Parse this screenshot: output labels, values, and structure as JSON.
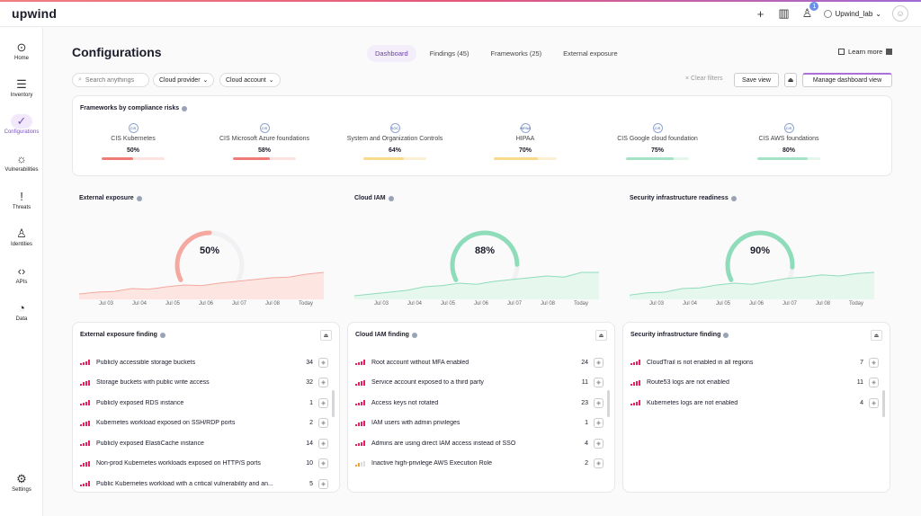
{
  "topbar": {
    "logo": "upwind",
    "notification_count": "1",
    "account_name": "Upwind_lab",
    "icons": [
      "plus-icon",
      "columns-icon",
      "bell-icon",
      "globe-icon",
      "user-icon"
    ]
  },
  "sidebar": {
    "items": [
      {
        "label": "Home",
        "icon": "home-icon"
      },
      {
        "label": "Inventory",
        "icon": "list-icon"
      },
      {
        "label": "Configurations",
        "icon": "check-icon"
      },
      {
        "label": "Vulnerabilities",
        "icon": "bug-icon"
      },
      {
        "label": "Threats",
        "icon": "exclamation-icon"
      },
      {
        "label": "Identities",
        "icon": "person-icon"
      },
      {
        "label": "APIs",
        "icon": "code-icon"
      },
      {
        "label": "Data",
        "icon": "pie-icon"
      },
      {
        "label": "Settings",
        "icon": "sliders-icon"
      }
    ]
  },
  "page": {
    "title": "Configurations",
    "tabs": [
      "Dashboard",
      "Findings (45)",
      "Frameworks (25)",
      "External exposure"
    ],
    "learn_more": "Learn more"
  },
  "filters": {
    "search_placeholder": "Search anythings",
    "cloud_provider": "Cloud provider",
    "cloud_account": "Cloud account",
    "clear_filters": "Clear filters",
    "save_view": "Save view",
    "manage_dashboard": "Manage dashboard view"
  },
  "frameworks": {
    "title": "Frameworks by compliance risks",
    "items": [
      {
        "logo": "CIS",
        "name": "CIS Kubernetes",
        "pct": "50%",
        "value": 0.5,
        "color": "#ef7d75",
        "track": "#fde3df"
      },
      {
        "logo": "CIS",
        "name": "CIS Microsoft Azure foundations",
        "pct": "58%",
        "value": 0.58,
        "color": "#ef7d75",
        "track": "#fde3df"
      },
      {
        "logo": "SOC",
        "name": "System and Organization Controls",
        "pct": "64%",
        "value": 0.64,
        "color": "#f9d98a",
        "track": "#fbf0d4"
      },
      {
        "logo": "HIPAA",
        "name": "HIPAA",
        "pct": "70%",
        "value": 0.7,
        "color": "#f9d98a",
        "track": "#fbf0d4"
      },
      {
        "logo": "CIS",
        "name": "CIS Google cloud foundation",
        "pct": "75%",
        "value": 0.75,
        "color": "#a6e3c6",
        "track": "#e3f6ec"
      },
      {
        "logo": "CIS",
        "name": "CIS AWS foundations",
        "pct": "80%",
        "value": 0.8,
        "color": "#a6e3c6",
        "track": "#e3f6ec"
      }
    ]
  },
  "gauges": [
    {
      "title": "External exposure",
      "pct": "50%",
      "value": 0.5,
      "color": "#f4a89f",
      "fill": "#fde6e2",
      "trend": [
        0.15,
        0.2,
        0.22,
        0.3,
        0.28,
        0.35,
        0.4,
        0.38,
        0.45,
        0.5,
        0.55,
        0.6,
        0.62,
        0.7,
        0.75
      ]
    },
    {
      "title": "Cloud IAM",
      "pct": "88%",
      "value": 0.88,
      "color": "#8fdcbb",
      "fill": "#e6f7ee",
      "trend": [
        0.1,
        0.15,
        0.2,
        0.25,
        0.35,
        0.38,
        0.45,
        0.42,
        0.5,
        0.55,
        0.6,
        0.65,
        0.62,
        0.75,
        0.75
      ]
    },
    {
      "title": "Security infrastructure readiness",
      "pct": "90%",
      "value": 0.9,
      "color": "#8fdcbb",
      "fill": "#e6f7ee",
      "trend": [
        0.12,
        0.18,
        0.2,
        0.3,
        0.32,
        0.4,
        0.45,
        0.42,
        0.5,
        0.58,
        0.62,
        0.68,
        0.65,
        0.72,
        0.75
      ]
    }
  ],
  "xaxis": [
    "Jul 03",
    "Jul 04",
    "Jul 05",
    "Jul 06",
    "Jul 07",
    "Jul 08",
    "Today"
  ],
  "lists": [
    {
      "title": "External exposure finding",
      "rows": [
        {
          "name": "Publicly accessible storage buckets",
          "count": "34",
          "sev": "high"
        },
        {
          "name": "Storage buckets with public write access",
          "count": "32",
          "sev": "high"
        },
        {
          "name": "Publicly exposed RDS instance",
          "count": "1",
          "sev": "high"
        },
        {
          "name": "Kubernetes workload exposed on SSH/RDP ports",
          "count": "2",
          "sev": "high"
        },
        {
          "name": "Publicly exposed ElastiCache instance",
          "count": "14",
          "sev": "high"
        },
        {
          "name": "Non-prod Kubernetes workloads exposed on HTTP/S ports",
          "count": "10",
          "sev": "high"
        },
        {
          "name": "Public Kubernetes workload with a critical vulnerability and an...",
          "count": "5",
          "sev": "high"
        }
      ]
    },
    {
      "title": "Cloud IAM finding",
      "rows": [
        {
          "name": "Root account without MFA enabled",
          "count": "24",
          "sev": "high"
        },
        {
          "name": "Service account exposed to a third party",
          "count": "11",
          "sev": "high"
        },
        {
          "name": "Access keys not rotated",
          "count": "23",
          "sev": "high"
        },
        {
          "name": "IAM users with admin privileges",
          "count": "1",
          "sev": "high"
        },
        {
          "name": "Admins are using direct IAM access instead of SSO",
          "count": "4",
          "sev": "high"
        },
        {
          "name": "Inactive high-privilege AWS Execution Role",
          "count": "2",
          "sev": "medium"
        }
      ]
    },
    {
      "title": "Security infrastructure finding",
      "rows": [
        {
          "name": "CloudTrail is not enabled in all regions",
          "count": "7",
          "sev": "high"
        },
        {
          "name": "Route53 logs are not enabled",
          "count": "11",
          "sev": "high"
        },
        {
          "name": "Kubernetes logs are not enabled",
          "count": "4",
          "sev": "high"
        }
      ]
    }
  ]
}
